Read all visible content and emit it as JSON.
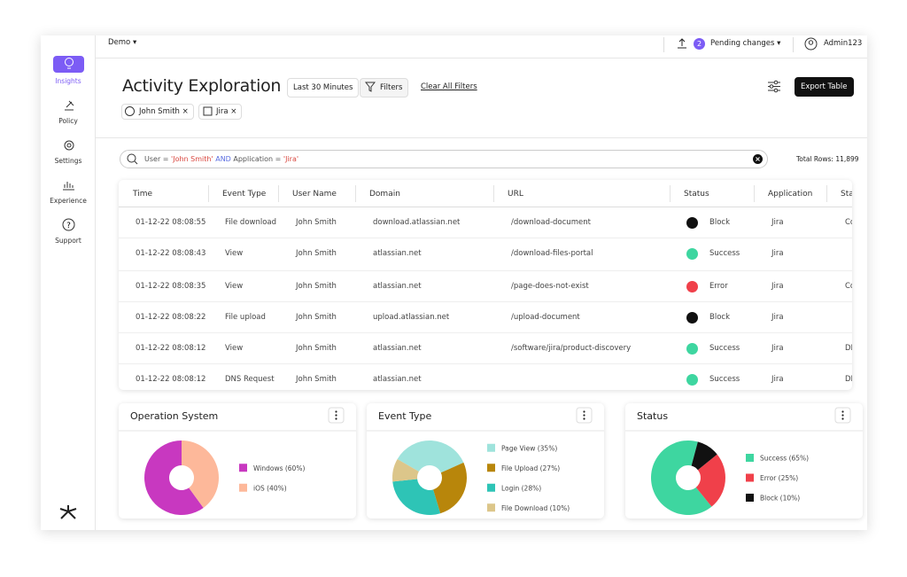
{
  "sidebar": {
    "items": [
      {
        "label": "Insights"
      },
      {
        "label": "Policy"
      },
      {
        "label": "Settings"
      },
      {
        "label": "Experience"
      },
      {
        "label": "Support"
      }
    ]
  },
  "topbar": {
    "workspace": "Demo",
    "pending_count": "2",
    "pending_label": "Pending changes",
    "user": "Admin123"
  },
  "header": {
    "title": "Activity Exploration",
    "time_range": "Last 30 Minutes",
    "filters": "Filters",
    "clear": "Clear All Filters",
    "export": "Export Table",
    "chips": [
      "John Smith",
      "Jira"
    ]
  },
  "search": {
    "parts": [
      {
        "text": "User = ",
        "color": "#555"
      },
      {
        "text": "'John Smith'",
        "color": "#d9473f"
      },
      {
        "text": " AND ",
        "color": "#5b6ee1"
      },
      {
        "text": "Application = ",
        "color": "#555"
      },
      {
        "text": "'Jira'",
        "color": "#d9473f"
      }
    ],
    "total_label": "Total Rows:",
    "total": "11,899"
  },
  "table": {
    "columns": [
      "Time",
      "Event Type",
      "User Name",
      "Domain",
      "URL",
      "Status",
      "Application",
      "Sta"
    ],
    "rows": [
      [
        "01-12-22 08:08:55",
        "File download",
        "John Smith",
        "download.atlassian.net",
        "/download-document",
        "Block",
        "Jira",
        "Co"
      ],
      [
        "01-12-22 08:08:43",
        "View",
        "John Smith",
        "atlassian.net",
        "/download-files-portal",
        "Success",
        "Jira",
        null
      ],
      [
        "01-12-22 08:08:35",
        "View",
        "John Smith",
        "atlassian.net",
        "/page-does-not-exist",
        "Error",
        "Jira",
        "Co"
      ],
      [
        "01-12-22 08:08:22",
        "File upload",
        "John Smith",
        "upload.atlassian.net",
        "/upload-document",
        "Block",
        "Jira",
        null
      ],
      [
        "01-12-22 08:08:12",
        "View",
        "John Smith",
        "atlassian.net",
        "/software/jira/product-discovery",
        "Success",
        "Jira",
        "DI"
      ],
      [
        "01-12-22 08:08:12",
        "DNS Request",
        "John Smith",
        "atlassian.net",
        null,
        "Success",
        "Jira",
        "DI"
      ]
    ],
    "status_icon_colors": [
      "#111",
      "#3ed6a0",
      "#f0404a",
      "#111",
      "#3ed6a0",
      "#3ed6a0"
    ]
  },
  "charts": [
    {
      "type": "pie",
      "title": "Operation System",
      "slices": [
        {
          "label": "Windows (60%)",
          "value": 60,
          "color": "#c838c0"
        },
        {
          "label": "iOS (40%)",
          "value": 40,
          "color": "#fdb89a"
        }
      ]
    },
    {
      "type": "pie",
      "title": "Event Type",
      "slices": [
        {
          "label": "Page View (35%)",
          "value": 35,
          "color": "#9fe3dc"
        },
        {
          "label": "File Upload (27%)",
          "value": 27,
          "color": "#b8860b"
        },
        {
          "label": "Login (28%)",
          "value": 28,
          "color": "#2ec4b6"
        },
        {
          "label": "File Download (10%)",
          "value": 10,
          "color": "#dcc68a"
        }
      ]
    },
    {
      "type": "pie",
      "title": "Status",
      "slices": [
        {
          "label": "Success (65%)",
          "value": 65,
          "color": "#3ed6a0"
        },
        {
          "label": "Error (25%)",
          "value": 25,
          "color": "#f0404a"
        },
        {
          "label": "Block (10%)",
          "value": 10,
          "color": "#111111"
        }
      ]
    }
  ]
}
